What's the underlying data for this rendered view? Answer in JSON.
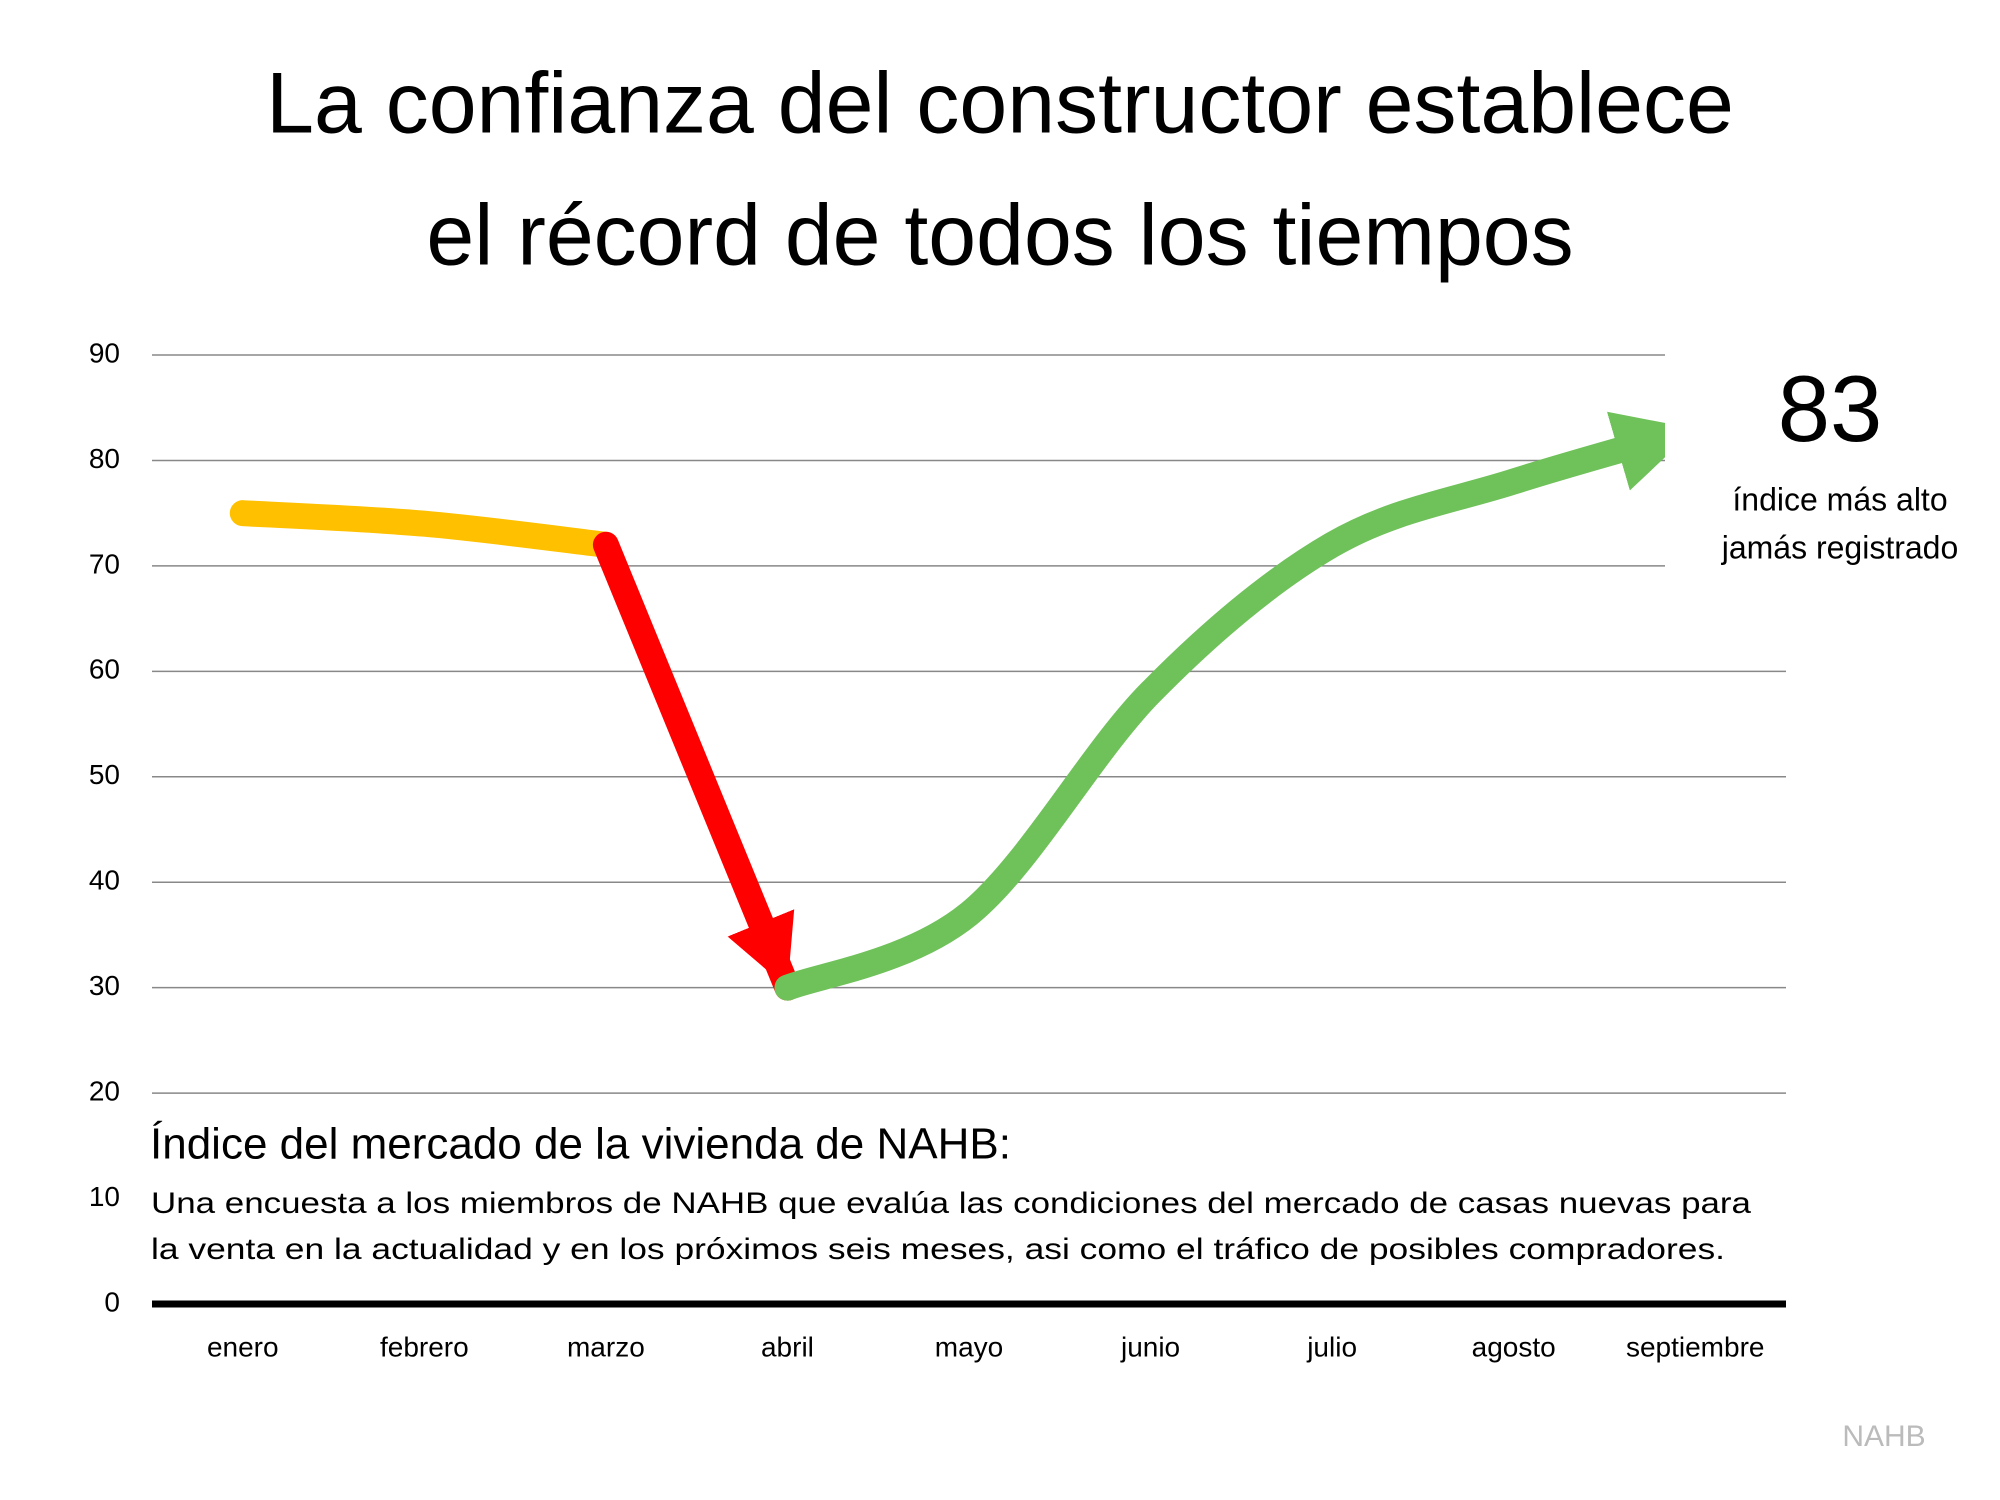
{
  "chart_data": {
    "type": "line",
    "title": [
      "La confianza del constructor establece",
      "el récord de todos los tiempos"
    ],
    "categories": [
      "enero",
      "febrero",
      "marzo",
      "abril",
      "mayo",
      "junio",
      "julio",
      "agosto",
      "septiembre"
    ],
    "series": [
      {
        "color": "#FFC000",
        "values": [
          75,
          74,
          72,
          null,
          null,
          null,
          null,
          null,
          null
        ],
        "end_arrow": false
      },
      {
        "color": "#FF0000",
        "values": [
          null,
          null,
          72,
          30,
          null,
          null,
          null,
          null,
          null
        ],
        "end_arrow": true
      },
      {
        "color": "#6FC15A",
        "values": [
          null,
          null,
          null,
          30,
          37,
          58,
          72,
          78,
          83
        ],
        "end_arrow": true
      }
    ],
    "ylim": [
      0,
      90
    ],
    "yticks": [
      0,
      10,
      20,
      30,
      40,
      50,
      60,
      70,
      80,
      90
    ],
    "grid": true,
    "callout": {
      "value": "83",
      "lines": [
        "índice más alto",
        "jamás registrado"
      ]
    },
    "description": {
      "title": "Índice del mercado de la vivienda de NAHB:",
      "lines": [
        "Una encuesta a los miembros de NAHB que evalúa las condiciones del mercado de casas nuevas para",
        "la venta en la actualidad y en los próximos seis meses, asi como el tráfico de posibles compradores."
      ]
    },
    "source": "NAHB"
  }
}
